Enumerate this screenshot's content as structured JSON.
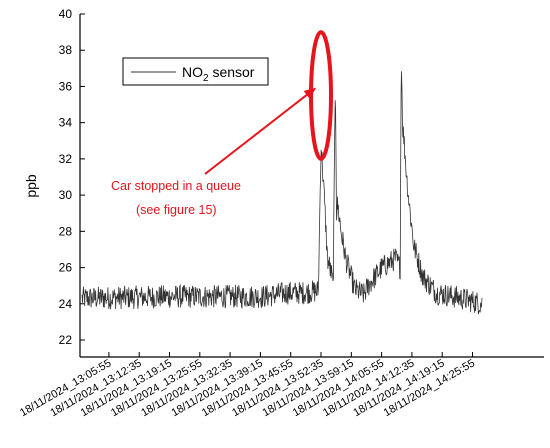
{
  "chart_data": {
    "type": "line",
    "title": "",
    "xlabel": "",
    "ylabel": "ppb",
    "ylim": [
      22,
      40
    ],
    "yticks": [
      22,
      24,
      26,
      28,
      30,
      32,
      34,
      36,
      38,
      40
    ],
    "xtick_labels": [
      "18/11/2024_13:05:55",
      "18/11/2024_13:12:35",
      "18/11/2024_13:19:15",
      "18/11/2024_13:25:55",
      "18/11/2024_13:32:35",
      "18/11/2024_13:39:15",
      "18/11/2024_13:45:55",
      "18/11/2024_13:52:35",
      "18/11/2024_13:59:15",
      "18/11/2024_14:05:55",
      "18/11/2024_14:12:35",
      "18/11/2024_14:19:15",
      "18/11/2024_14:25:55"
    ],
    "legend": {
      "text": "NO",
      "subscript": "2",
      "suffix": " sensor",
      "position": "top-left"
    },
    "grid": false,
    "series": [
      {
        "name": "NO2 sensor",
        "color": "#333333",
        "x_time": [
          "13:00:00",
          "13:20:00",
          "13:40:00",
          "13:45:00",
          "13:48:00",
          "13:52:00",
          "13:52:35",
          "13:53:10",
          "13:54:00",
          "13:55:00",
          "13:55:15",
          "13:55:45",
          "13:56:00",
          "13:56:15",
          "13:57:00",
          "13:58:00",
          "14:00:00",
          "14:02:00",
          "14:03:00",
          "14:06:00",
          "14:09:00",
          "14:10:00",
          "14:10:15",
          "14:10:30",
          "14:11:00",
          "14:11:30",
          "14:12:00",
          "14:13:00",
          "14:15:00",
          "14:18:00",
          "14:20:00",
          "14:25:00",
          "14:28:00"
        ],
        "y": [
          24.3,
          24.4,
          24.4,
          24.6,
          24.6,
          24.7,
          32.8,
          30.5,
          26.5,
          25.5,
          24.8,
          36.7,
          29.0,
          29.5,
          28.0,
          26.5,
          24.8,
          24.5,
          25.0,
          26.0,
          26.5,
          26.0,
          38.3,
          34.0,
          32.5,
          30.8,
          29.5,
          27.2,
          25.5,
          24.6,
          24.5,
          24.2,
          24.0
        ]
      }
    ],
    "annotation": {
      "lines": [
        "Car stopped in a queue",
        "(see figure 15)"
      ],
      "color": "#e8141c",
      "target_x_time": "13:52:35",
      "ellipse_y_range": [
        32,
        39
      ]
    }
  }
}
